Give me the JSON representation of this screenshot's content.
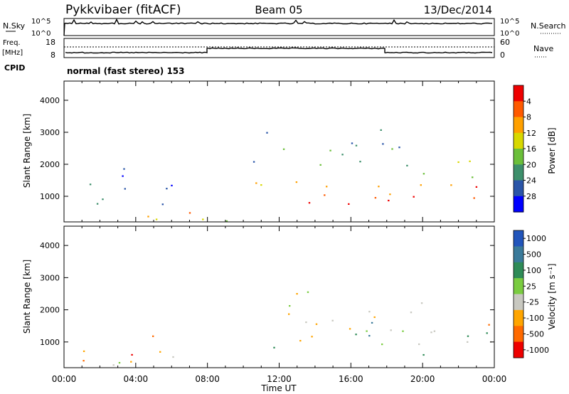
{
  "header": {
    "station": "Pykkvibaer (fitACF)",
    "beam": "Beam 05",
    "date": "13/Dec/2014"
  },
  "nsky_panel": {
    "left_label": "N.Sky",
    "right_label": "N.Search",
    "left_ticks": [
      "10^5",
      "10^0"
    ],
    "right_ticks": [
      "10^5",
      "10^0"
    ]
  },
  "freq_panel": {
    "left_label_top": "Freq.",
    "left_label_bottom": "[MHz]",
    "right_label": "Nave",
    "left_ticks": [
      "18",
      "8"
    ],
    "right_ticks": [
      "60",
      "0"
    ]
  },
  "cpid": {
    "label": "CPID",
    "value": "normal (fast stereo) 153"
  },
  "colors": {
    "power": [
      "#0000ff",
      "#2a55a8",
      "#3d8f6b",
      "#6bbf3a",
      "#d8d800",
      "#ffa000",
      "#ff5a00",
      "#ee0000"
    ],
    "velocity": [
      "#2255bb",
      "#3a7a9a",
      "#2e8b57",
      "#7acc40",
      "#c8c8c0",
      "#ffa500",
      "#ff6a00",
      "#ee0000"
    ]
  },
  "chart_data": [
    {
      "type": "heatmap",
      "panel": "power",
      "xlabel": "Time UT",
      "ylabel": "Slant Range [km]",
      "xlim": [
        0,
        24
      ],
      "ylim": [
        200,
        4600
      ],
      "x_ticks": [
        "00:00",
        "04:00",
        "08:00",
        "12:00",
        "16:00",
        "20:00",
        "00:00"
      ],
      "y_ticks": [
        1000,
        2000,
        3000,
        4000
      ],
      "colorbar_label": "Power [dB]",
      "colorbar_ticks": [
        "4",
        "8",
        "12",
        "16",
        "20",
        "24",
        "28"
      ],
      "scatter_regions": [
        {
          "t0": 0.2,
          "t1": 7.0,
          "r0": 300,
          "r1": 600,
          "level": 5
        },
        {
          "t0": 0.3,
          "t1": 6.8,
          "r0": 600,
          "r1": 1500,
          "level": 1
        },
        {
          "t0": 2.0,
          "t1": 3.5,
          "r0": 1500,
          "r1": 2400,
          "level": 1
        },
        {
          "t0": 10.0,
          "t1": 13.0,
          "r0": 1000,
          "r1": 2000,
          "level": 4
        },
        {
          "t0": 12.0,
          "t1": 18.5,
          "r0": 700,
          "r1": 1600,
          "level": 6
        },
        {
          "t0": 10.5,
          "t1": 19.5,
          "r0": 1700,
          "r1": 3100,
          "level": 2
        },
        {
          "t0": 18.0,
          "t1": 24.0,
          "r0": 600,
          "r1": 1500,
          "level": 6
        },
        {
          "t0": 20.0,
          "t1": 24.0,
          "r0": 1500,
          "r1": 2400,
          "level": 3
        },
        {
          "t0": 0.0,
          "t1": 24.0,
          "r0": 220,
          "r1": 340,
          "level": 4
        }
      ]
    },
    {
      "type": "heatmap",
      "panel": "velocity",
      "xlabel": "Time UT",
      "ylabel": "Slant Range [km]",
      "xlim": [
        0,
        24
      ],
      "ylim": [
        200,
        4600
      ],
      "x_ticks": [
        "00:00",
        "04:00",
        "08:00",
        "12:00",
        "16:00",
        "20:00",
        "00:00"
      ],
      "y_ticks": [
        1000,
        2000,
        3000,
        4000
      ],
      "colorbar_label": "Velocity [m s⁻¹]",
      "colorbar_ticks": [
        "1000",
        "500",
        "100",
        "25",
        "-25",
        "-100",
        "-500",
        "-1000"
      ],
      "scatter_regions": [
        {
          "t0": 0.2,
          "t1": 7.5,
          "r0": 300,
          "r1": 1100,
          "level": 4
        },
        {
          "t0": 3.5,
          "t1": 5.5,
          "r0": 500,
          "r1": 1500,
          "level": 6
        },
        {
          "t0": 0.5,
          "t1": 3.0,
          "r0": 300,
          "r1": 600,
          "level": 5
        },
        {
          "t0": 10.0,
          "t1": 20.0,
          "r0": 900,
          "r1": 2600,
          "level": 4
        },
        {
          "t0": 10.0,
          "t1": 12.5,
          "r0": 400,
          "r1": 900,
          "level": 3
        },
        {
          "t0": 14.0,
          "t1": 18.0,
          "r0": 1200,
          "r1": 1900,
          "level": 1
        },
        {
          "t0": 19.0,
          "t1": 24.0,
          "r0": 500,
          "r1": 1500,
          "level": 3
        },
        {
          "t0": 22.0,
          "t1": 24.0,
          "r0": 900,
          "r1": 1700,
          "level": 5
        }
      ]
    }
  ]
}
